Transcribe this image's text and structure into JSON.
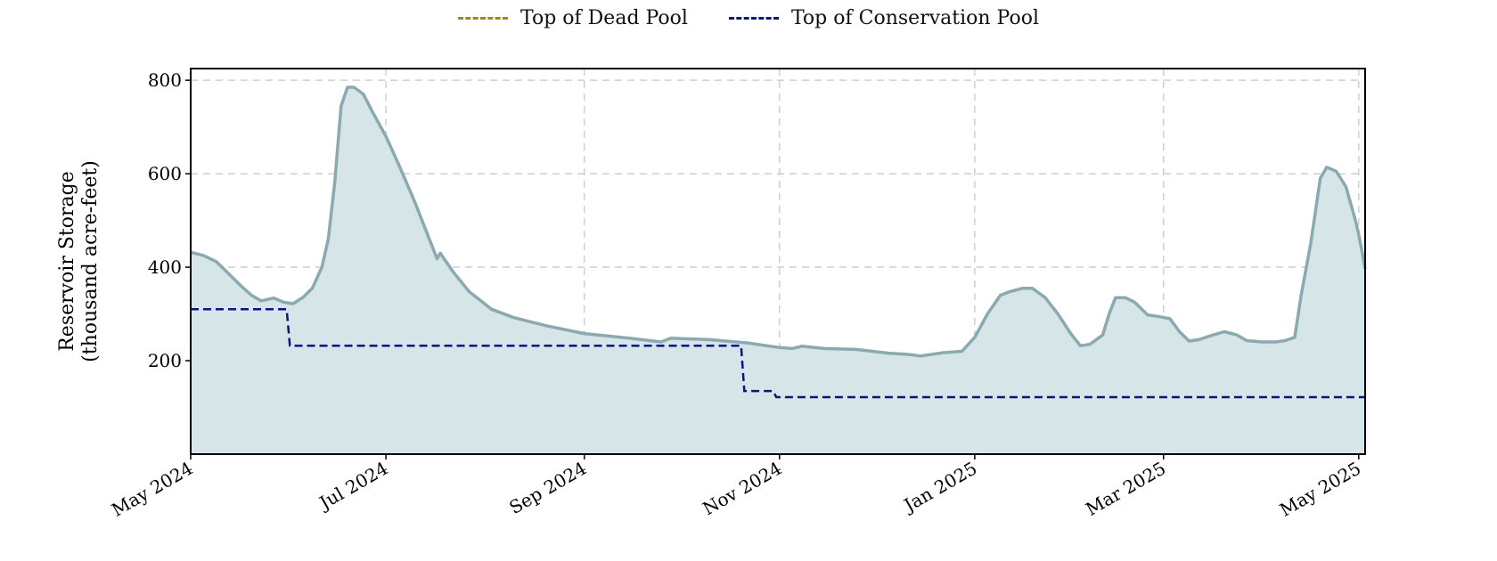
{
  "chart_data": {
    "type": "area",
    "title": "",
    "xlabel": "",
    "ylabel": [
      "Reservoir Storage",
      "(thousand acre-feet)"
    ],
    "x_range": [
      "2024-05-01",
      "2025-05-03"
    ],
    "ylim": [
      0,
      825
    ],
    "yticks": [
      200,
      400,
      600,
      800
    ],
    "xticks": [
      {
        "date": "2024-05-01",
        "label": "May 2024"
      },
      {
        "date": "2024-07-01",
        "label": "Jul 2024"
      },
      {
        "date": "2024-09-01",
        "label": "Sep 2024"
      },
      {
        "date": "2024-11-01",
        "label": "Nov 2024"
      },
      {
        "date": "2025-01-01",
        "label": "Jan 2025"
      },
      {
        "date": "2025-03-01",
        "label": "Mar 2025"
      },
      {
        "date": "2025-05-01",
        "label": "May 2025"
      }
    ],
    "grid": true,
    "legend_position": "top-center",
    "legend": [
      {
        "label": "Top of Dead Pool",
        "color": "#9a8a10"
      },
      {
        "label": "Top of Conservation Pool",
        "color": "#0d1480"
      }
    ],
    "storage_series": {
      "color": "#8aaab0",
      "fill": "#d6e5e8",
      "points": [
        [
          "2024-05-01",
          432
        ],
        [
          "2024-05-05",
          425
        ],
        [
          "2024-05-09",
          412
        ],
        [
          "2024-05-13",
          385
        ],
        [
          "2024-05-17",
          358
        ],
        [
          "2024-05-20",
          340
        ],
        [
          "2024-05-23",
          328
        ],
        [
          "2024-05-27",
          334
        ],
        [
          "2024-05-30",
          325
        ],
        [
          "2024-06-02",
          322
        ],
        [
          "2024-06-05",
          335
        ],
        [
          "2024-06-08",
          355
        ],
        [
          "2024-06-11",
          400
        ],
        [
          "2024-06-13",
          460
        ],
        [
          "2024-06-15",
          580
        ],
        [
          "2024-06-17",
          745
        ],
        [
          "2024-06-19",
          785
        ],
        [
          "2024-06-21",
          785
        ],
        [
          "2024-06-24",
          770
        ],
        [
          "2024-06-27",
          730
        ],
        [
          "2024-07-01",
          680
        ],
        [
          "2024-07-05",
          620
        ],
        [
          "2024-07-10",
          540
        ],
        [
          "2024-07-14",
          470
        ],
        [
          "2024-07-17",
          418
        ],
        [
          "2024-07-18",
          430
        ],
        [
          "2024-07-22",
          390
        ],
        [
          "2024-07-27",
          348
        ],
        [
          "2024-08-03",
          310
        ],
        [
          "2024-08-10",
          292
        ],
        [
          "2024-08-20",
          275
        ],
        [
          "2024-09-01",
          258
        ],
        [
          "2024-09-15",
          248
        ],
        [
          "2024-09-25",
          240
        ],
        [
          "2024-09-28",
          248
        ],
        [
          "2024-10-10",
          245
        ],
        [
          "2024-10-22",
          238
        ],
        [
          "2024-11-01",
          228
        ],
        [
          "2024-11-05",
          226
        ],
        [
          "2024-11-08",
          231
        ],
        [
          "2024-11-15",
          226
        ],
        [
          "2024-11-25",
          224
        ],
        [
          "2024-12-05",
          216
        ],
        [
          "2024-12-12",
          213
        ],
        [
          "2024-12-15",
          210
        ],
        [
          "2024-12-22",
          217
        ],
        [
          "2024-12-28",
          220
        ],
        [
          "2025-01-01",
          250
        ],
        [
          "2025-01-05",
          300
        ],
        [
          "2025-01-09",
          340
        ],
        [
          "2025-01-12",
          348
        ],
        [
          "2025-01-16",
          355
        ],
        [
          "2025-01-19",
          355
        ],
        [
          "2025-01-23",
          335
        ],
        [
          "2025-01-27",
          300
        ],
        [
          "2025-01-31",
          258
        ],
        [
          "2025-02-03",
          232
        ],
        [
          "2025-02-06",
          235
        ],
        [
          "2025-02-10",
          255
        ],
        [
          "2025-02-12",
          300
        ],
        [
          "2025-02-14",
          335
        ],
        [
          "2025-02-17",
          335
        ],
        [
          "2025-02-20",
          325
        ],
        [
          "2025-02-24",
          298
        ],
        [
          "2025-02-27",
          295
        ],
        [
          "2025-03-03",
          290
        ],
        [
          "2025-03-06",
          262
        ],
        [
          "2025-03-09",
          242
        ],
        [
          "2025-03-12",
          245
        ],
        [
          "2025-03-16",
          254
        ],
        [
          "2025-03-20",
          262
        ],
        [
          "2025-03-24",
          255
        ],
        [
          "2025-03-27",
          243
        ],
        [
          "2025-04-01",
          240
        ],
        [
          "2025-04-05",
          240
        ],
        [
          "2025-04-08",
          243
        ],
        [
          "2025-04-11",
          250
        ],
        [
          "2025-04-13",
          340
        ],
        [
          "2025-04-16",
          450
        ],
        [
          "2025-04-19",
          590
        ],
        [
          "2025-04-21",
          614
        ],
        [
          "2025-04-24",
          605
        ],
        [
          "2025-04-27",
          572
        ],
        [
          "2025-04-30",
          500
        ],
        [
          "2025-05-01",
          470
        ],
        [
          "2025-05-02",
          435
        ],
        [
          "2025-05-03",
          396
        ]
      ]
    },
    "conservation_pool": {
      "color": "#0d1480",
      "points": [
        [
          "2024-05-01",
          310
        ],
        [
          "2024-05-31",
          310
        ],
        [
          "2024-06-01",
          232
        ],
        [
          "2024-10-20",
          232
        ],
        [
          "2024-10-21",
          135
        ],
        [
          "2024-10-30",
          135
        ],
        [
          "2024-10-31",
          122
        ],
        [
          "2025-05-03",
          122
        ]
      ]
    }
  }
}
